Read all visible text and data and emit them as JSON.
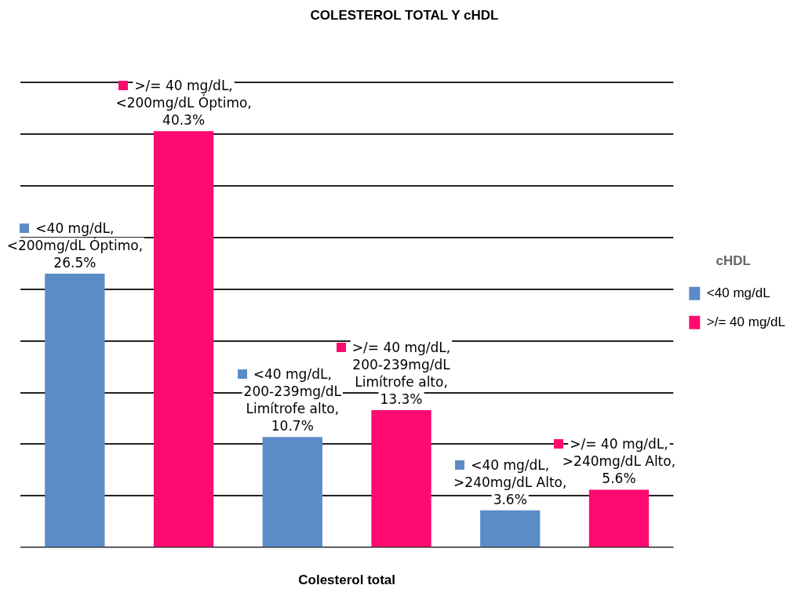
{
  "chart_data": {
    "type": "bar",
    "title": "COLESTEROL TOTAL Y cHDL",
    "xlabel": "Colesterol total",
    "legend_title": "cHDL",
    "categories": [
      null,
      null,
      null
    ],
    "series": [
      {
        "name": "<40 mg/dL",
        "color": "#5b8cc8",
        "values": [
          26.5,
          10.7,
          3.6
        ],
        "value_labels": [
          "<40 mg/dL, <200mg/dL Óptimo, 26.5%",
          "<40 mg/dL, 200-239mg/dL Limítrofe alto, 10.7%",
          "<40 mg/dL, >240mg/dL Alto, 3.6%"
        ]
      },
      {
        "name": ">/= 40 mg/dL",
        "color": "#ff0a70",
        "values": [
          40.3,
          13.3,
          5.6
        ],
        "value_labels": [
          ">/= 40 mg/dL, <200mg/dL Óptimo, 40.3%",
          ">/= 40 mg/dL, 200-239mg/dL Limítrofe alto, 13.3%",
          ">/= 40 mg/dL, >240mg/dL Alto, 5.6%"
        ]
      }
    ],
    "ylim": [
      0,
      45
    ],
    "yticks": [
      {
        "value": 0,
        "label": null
      },
      {
        "value": 5,
        "label": null
      },
      {
        "value": 10,
        "label": null
      },
      {
        "value": 15,
        "label": null
      },
      {
        "value": 20,
        "label": null
      },
      {
        "value": 25,
        "label": null
      },
      {
        "value": 30,
        "label": null
      },
      {
        "value": 35,
        "label": null
      },
      {
        "value": 40,
        "label": null
      },
      {
        "value": 45,
        "label": null
      }
    ],
    "grid": "y",
    "legend": "right"
  }
}
